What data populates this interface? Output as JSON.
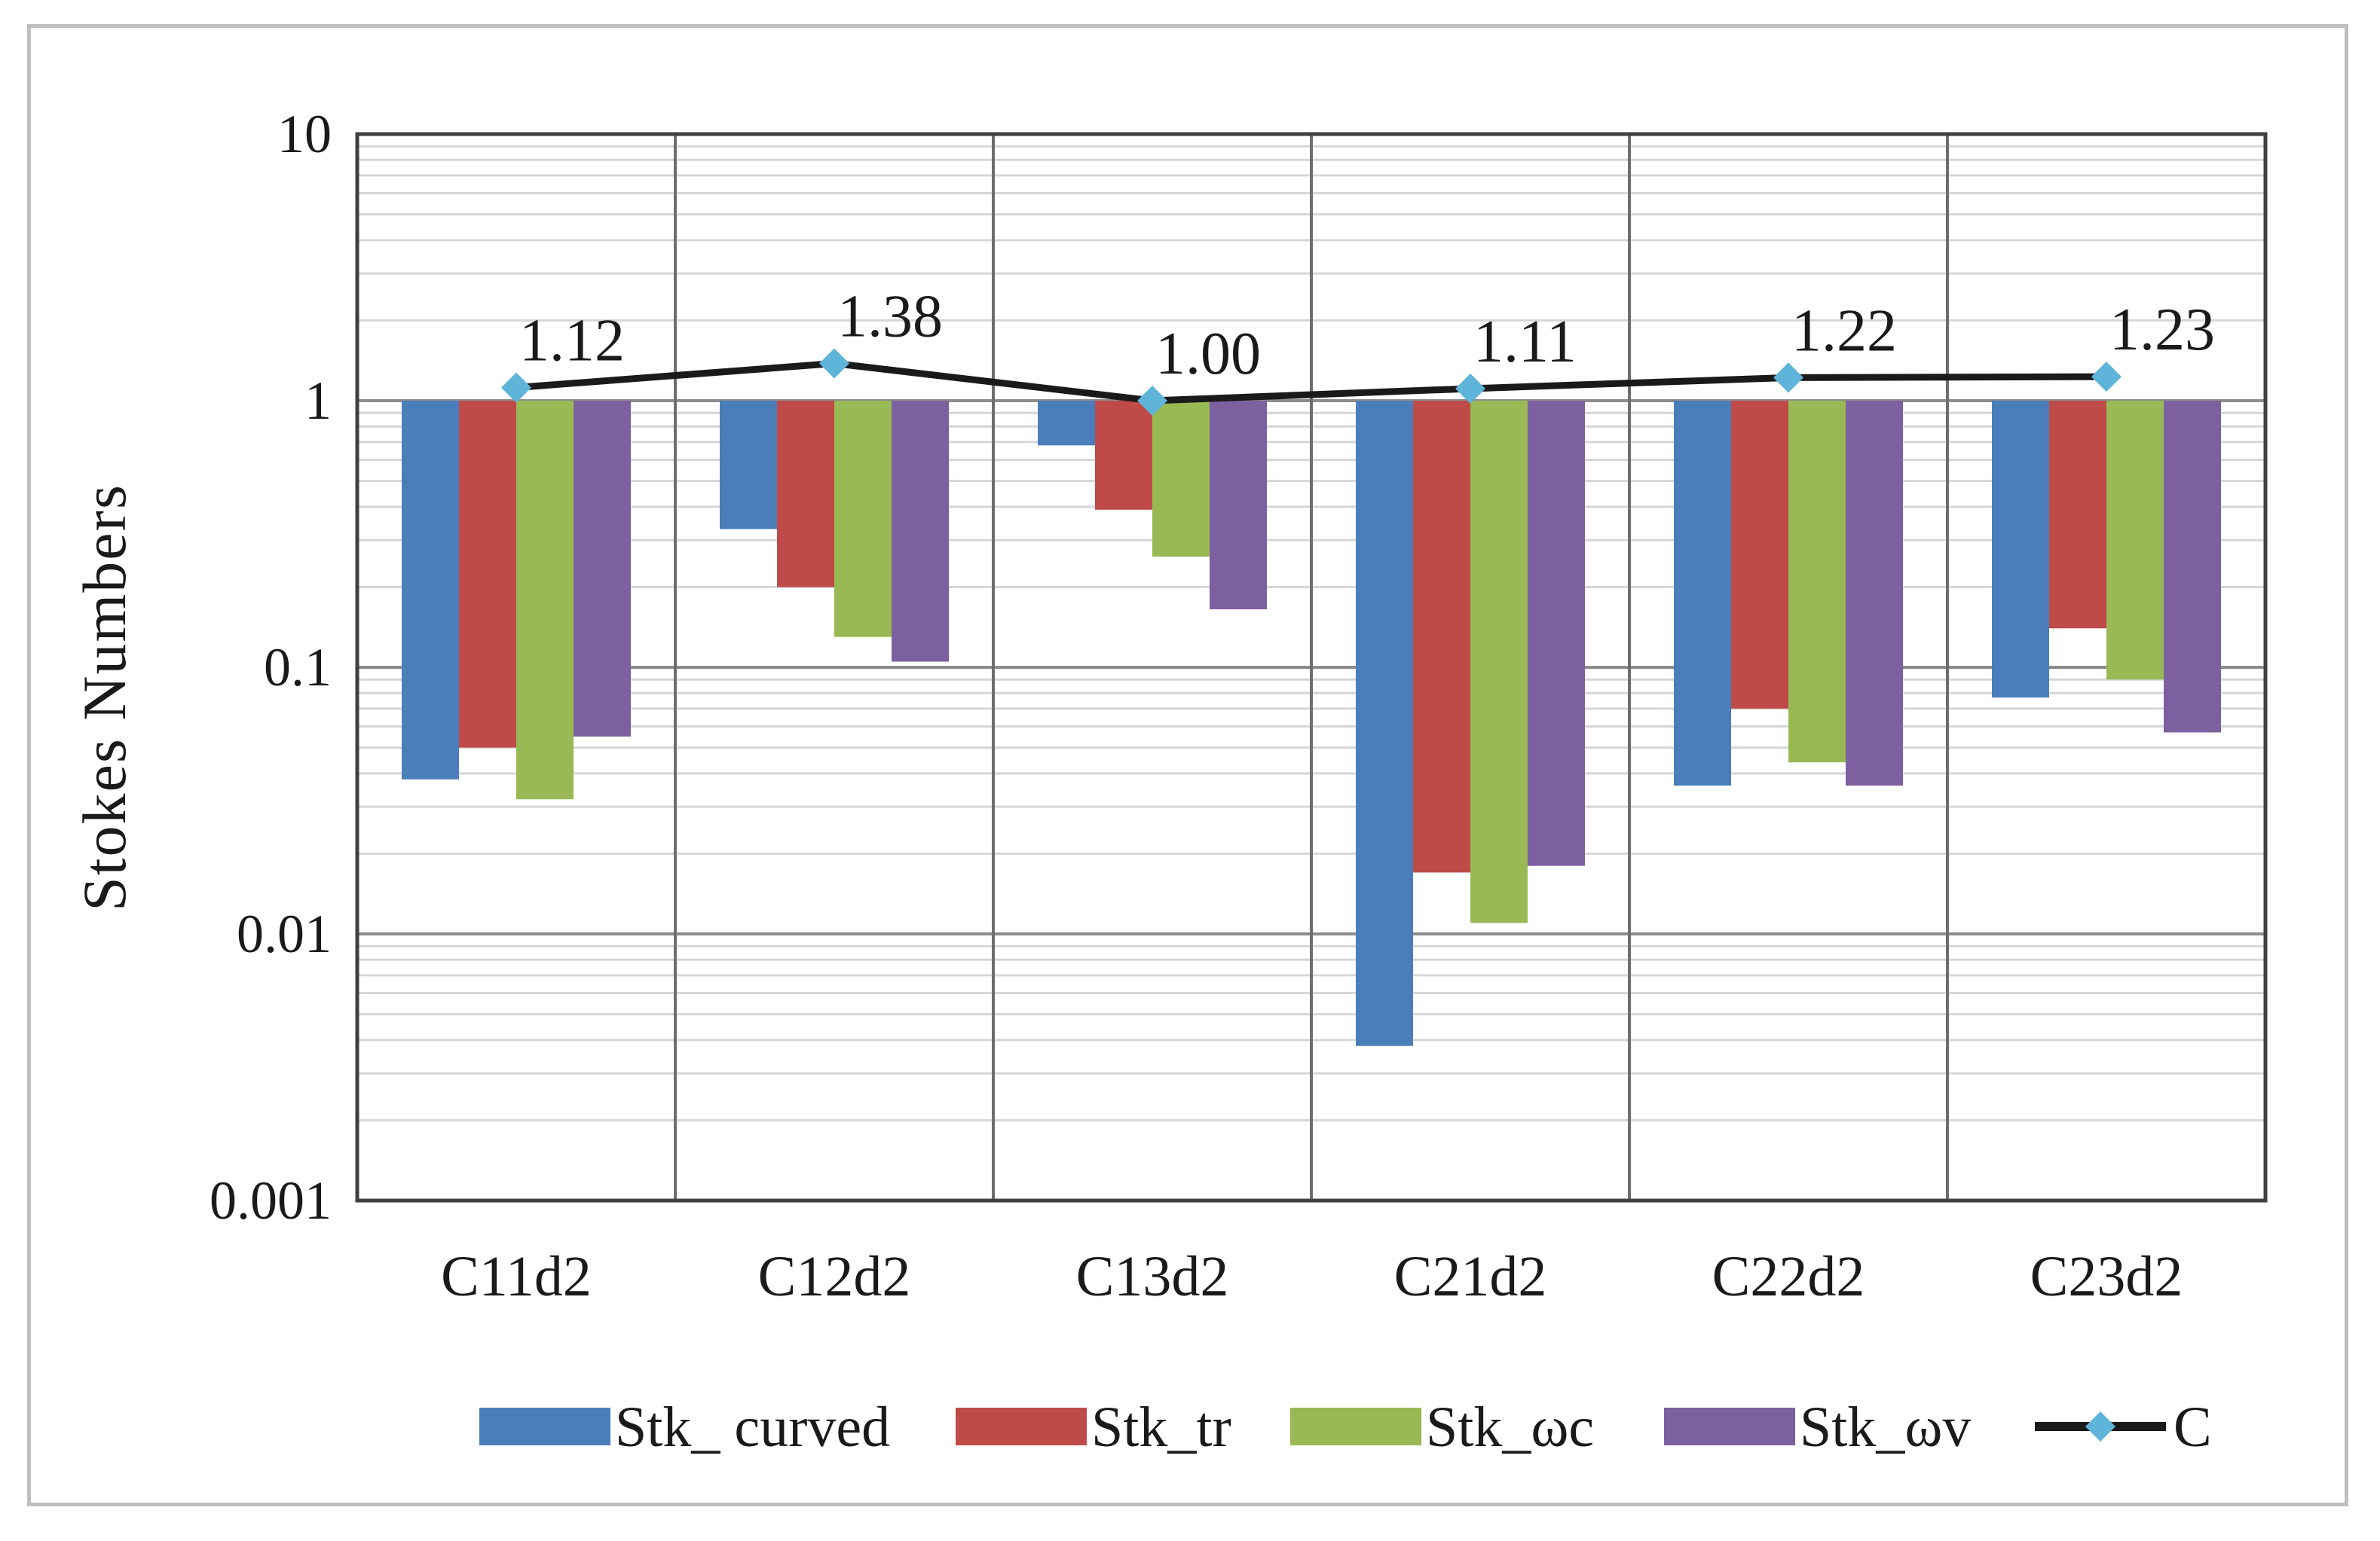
{
  "chart_data": {
    "type": "bar",
    "title": "",
    "xlabel": "",
    "ylabel": "Stokes  Numbers",
    "yscale": "log",
    "ylim": [
      0.001,
      10
    ],
    "yticks": [
      "10",
      "1",
      "0.1",
      "0.01",
      "0.001"
    ],
    "ytick_values": [
      10,
      1,
      0.1,
      0.01,
      0.001
    ],
    "bar_baseline": 1,
    "grid": true,
    "legend_position": "bottom",
    "categories": [
      "C11d2",
      "C12d2",
      "C13d2",
      "C21d2",
      "C22d2",
      "C23d2"
    ],
    "series": [
      {
        "name": "Stk_ curved",
        "color": "#4a7ebb",
        "values": [
          0.038,
          0.33,
          0.68,
          0.0038,
          0.036,
          0.077
        ]
      },
      {
        "name": "Stk_tr",
        "color": "#be4b48",
        "values": [
          0.05,
          0.2,
          0.39,
          0.017,
          0.07,
          0.14
        ]
      },
      {
        "name": "Stk_ωc",
        "color": "#98b954",
        "values": [
          0.032,
          0.13,
          0.26,
          0.011,
          0.044,
          0.09
        ]
      },
      {
        "name": "Stk_ωv",
        "color": "#7d60a0",
        "values": [
          0.055,
          0.105,
          0.165,
          0.018,
          0.036,
          0.057
        ]
      }
    ],
    "line_series": {
      "name": "C",
      "color": "#1a1a1a",
      "marker_color": "#5fb4d9",
      "values": [
        1.12,
        1.38,
        1.0,
        1.11,
        1.22,
        1.23
      ],
      "labels": [
        "1.12",
        "1.38",
        "1.00",
        "1.11",
        "1.22",
        "1.23"
      ]
    }
  }
}
